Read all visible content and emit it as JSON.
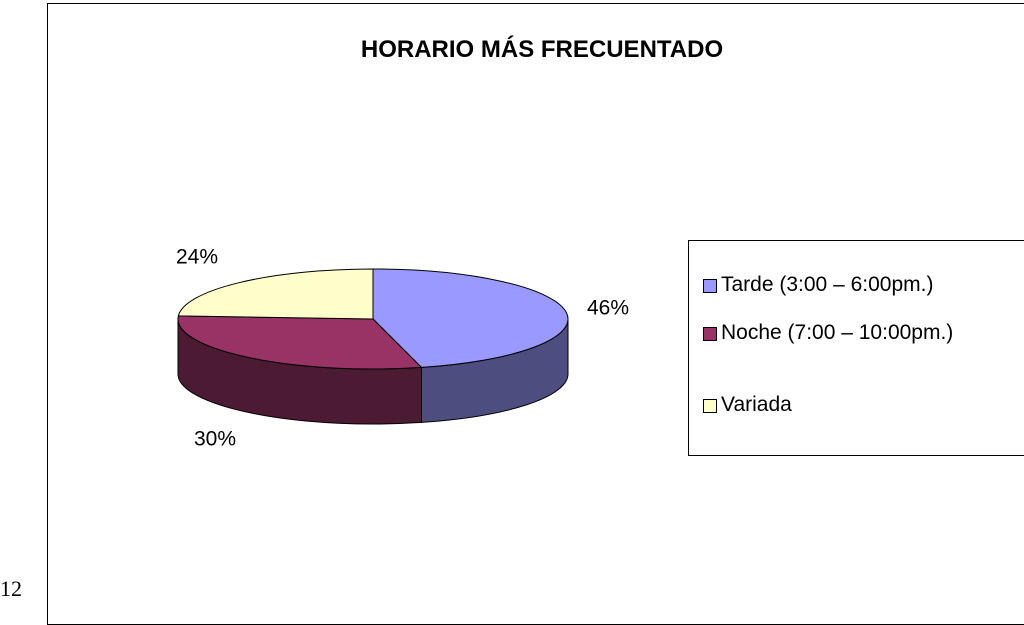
{
  "chart_data": {
    "type": "pie",
    "title": "HORARIO MÁS FRECUENTADO",
    "categories": [
      "Tarde (3:00 – 6:00pm.)",
      "Noche (7:00 – 10:00pm.)",
      "Variada"
    ],
    "values": [
      46,
      30,
      24
    ],
    "value_labels": [
      "46%",
      "30%",
      "24%"
    ],
    "colors": [
      "#9999ff",
      "#993366",
      "#ffffcc"
    ],
    "side_colors": [
      "#4d4d80",
      "#4d1a33",
      "#808066"
    ],
    "legend": "right"
  },
  "page_number": "12"
}
